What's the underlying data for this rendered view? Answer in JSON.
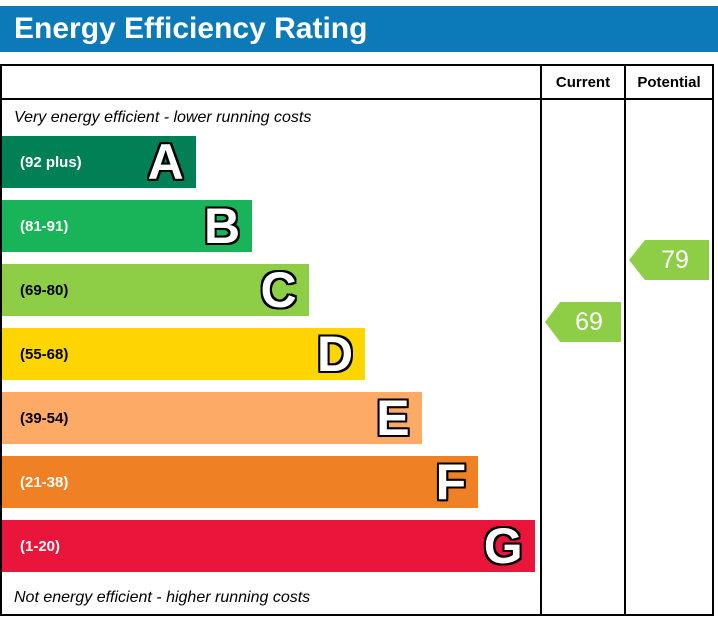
{
  "header": {
    "title": "Energy Efficiency Rating",
    "bg": "#0c79b8"
  },
  "columns": {
    "current": "Current",
    "potential": "Potential"
  },
  "captions": {
    "top": "Very energy efficient - lower running costs",
    "bottom": "Not energy efficient - higher running costs"
  },
  "bands": [
    {
      "letter": "A",
      "range": "(92 plus)",
      "color": "#008054",
      "width_pct": 36,
      "text_color": "#ffffff"
    },
    {
      "letter": "B",
      "range": "(81-91)",
      "color": "#19b459",
      "width_pct": 46.5,
      "text_color": "#ffffff"
    },
    {
      "letter": "C",
      "range": "(69-80)",
      "color": "#8dce46",
      "width_pct": 57,
      "text_color": "#000000"
    },
    {
      "letter": "D",
      "range": "(55-68)",
      "color": "#ffd500",
      "width_pct": 67.5,
      "text_color": "#000000"
    },
    {
      "letter": "E",
      "range": "(39-54)",
      "color": "#fcaa65",
      "width_pct": 78,
      "text_color": "#000000"
    },
    {
      "letter": "F",
      "range": "(21-38)",
      "color": "#ef8023",
      "width_pct": 88.5,
      "text_color": "#ffffff"
    },
    {
      "letter": "G",
      "range": "(1-20)",
      "color": "#e9153b",
      "width_pct": 99,
      "text_color": "#ffffff"
    }
  ],
  "ratings": {
    "current": {
      "value": "69",
      "color": "#8dce46"
    },
    "potential": {
      "value": "79",
      "color": "#8dce46"
    }
  },
  "chart_data": {
    "type": "bar",
    "title": "Energy Efficiency Rating",
    "categories": [
      "A",
      "B",
      "C",
      "D",
      "E",
      "F",
      "G"
    ],
    "band_ranges": [
      "92 plus",
      "81-91",
      "69-80",
      "55-68",
      "39-54",
      "21-38",
      "1-20"
    ],
    "band_colors": [
      "#008054",
      "#19b459",
      "#8dce46",
      "#ffd500",
      "#fcaa65",
      "#ef8023",
      "#e9153b"
    ],
    "bar_relative_widths_pct": [
      36,
      46.5,
      57,
      67.5,
      78,
      88.5,
      99
    ],
    "series": [
      {
        "name": "Current",
        "value": 69,
        "band": "C"
      },
      {
        "name": "Potential",
        "value": 79,
        "band": "C"
      }
    ],
    "annotations": [
      "Very energy efficient - lower running costs",
      "Not energy efficient - higher running costs"
    ],
    "legend_position": "none",
    "grid": false
  }
}
